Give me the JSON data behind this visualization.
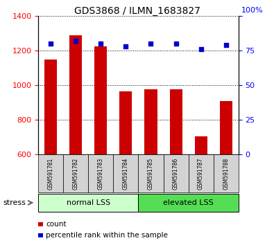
{
  "title": "GDS3868 / ILMN_1683827",
  "samples": [
    "GSM591781",
    "GSM591782",
    "GSM591783",
    "GSM591784",
    "GSM591785",
    "GSM591786",
    "GSM591787",
    "GSM591788"
  ],
  "bar_values": [
    1150,
    1290,
    1225,
    965,
    975,
    975,
    705,
    910
  ],
  "percentile_values": [
    80,
    82,
    80,
    78,
    80,
    80,
    76,
    79
  ],
  "bar_color": "#cc0000",
  "dot_color": "#0000cc",
  "ylim_left": [
    600,
    1400
  ],
  "ylim_right": [
    0,
    100
  ],
  "yticks_left": [
    600,
    800,
    1000,
    1200,
    1400
  ],
  "yticks_right": [
    0,
    25,
    50,
    75,
    100
  ],
  "right_axis_label": "100%",
  "groups": [
    {
      "label": "normal LSS",
      "start": 0,
      "end": 4,
      "color": "#ccffcc"
    },
    {
      "label": "elevated LSS",
      "start": 4,
      "end": 8,
      "color": "#55dd55"
    }
  ],
  "stress_label": "stress",
  "legend_items": [
    {
      "color": "#cc0000",
      "label": "count"
    },
    {
      "color": "#0000cc",
      "label": "percentile rank within the sample"
    }
  ],
  "grid_color": "black",
  "bar_width": 0.5,
  "dot_size": 25
}
